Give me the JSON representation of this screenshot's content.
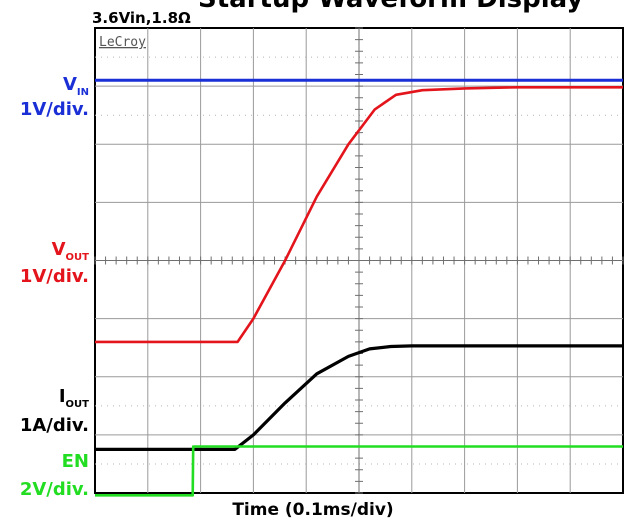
{
  "title": "Startup Waveform Display",
  "subtitle": "3.6Vin,1.8Ω",
  "brand": "LeCroy",
  "xlabel": "Time (0.1ms/div)",
  "channels": {
    "vin": {
      "name": "V",
      "sub": "IN",
      "scale": "1V/div.",
      "color": "#1a2fd6"
    },
    "vout": {
      "name": "V",
      "sub": "OUT",
      "scale": "1V/div.",
      "color": "#e3141b"
    },
    "iout": {
      "name": "I",
      "sub": "OUT",
      "scale": "1A/div.",
      "color": "#000000"
    },
    "en": {
      "name": "EN",
      "scale": "2V/div.",
      "color": "#22dd22"
    }
  },
  "chart_data": {
    "type": "line",
    "title": "",
    "xlabel": "Time (0.1ms/div)",
    "ylabel": "",
    "xlim": [
      0,
      1.0
    ],
    "ylim": [
      0,
      8
    ],
    "grid": true,
    "x_units": "ms",
    "y_units": "divisions",
    "series": [
      {
        "name": "VIN",
        "color": "#1a2fd6",
        "x": [
          0,
          1.0
        ],
        "y": [
          7.1,
          7.1
        ]
      },
      {
        "name": "VOUT",
        "color": "#e3141b",
        "x": [
          0,
          0.27,
          0.3,
          0.36,
          0.42,
          0.48,
          0.53,
          0.57,
          0.62,
          0.7,
          0.8,
          1.0
        ],
        "y": [
          2.6,
          2.6,
          3.0,
          4.0,
          5.1,
          6.0,
          6.6,
          6.85,
          6.93,
          6.96,
          6.98,
          6.98
        ]
      },
      {
        "name": "IOUT",
        "color": "#000000",
        "x": [
          0,
          0.265,
          0.3,
          0.36,
          0.42,
          0.48,
          0.52,
          0.56,
          0.6,
          0.7,
          0.85,
          1.0
        ],
        "y": [
          0.75,
          0.75,
          1.0,
          1.55,
          2.05,
          2.35,
          2.48,
          2.52,
          2.53,
          2.53,
          2.53,
          2.53
        ]
      },
      {
        "name": "EN",
        "color": "#22dd22",
        "x": [
          0,
          0.185,
          0.186,
          1.0
        ],
        "y": [
          -0.04,
          -0.04,
          0.8,
          0.8
        ]
      }
    ]
  }
}
